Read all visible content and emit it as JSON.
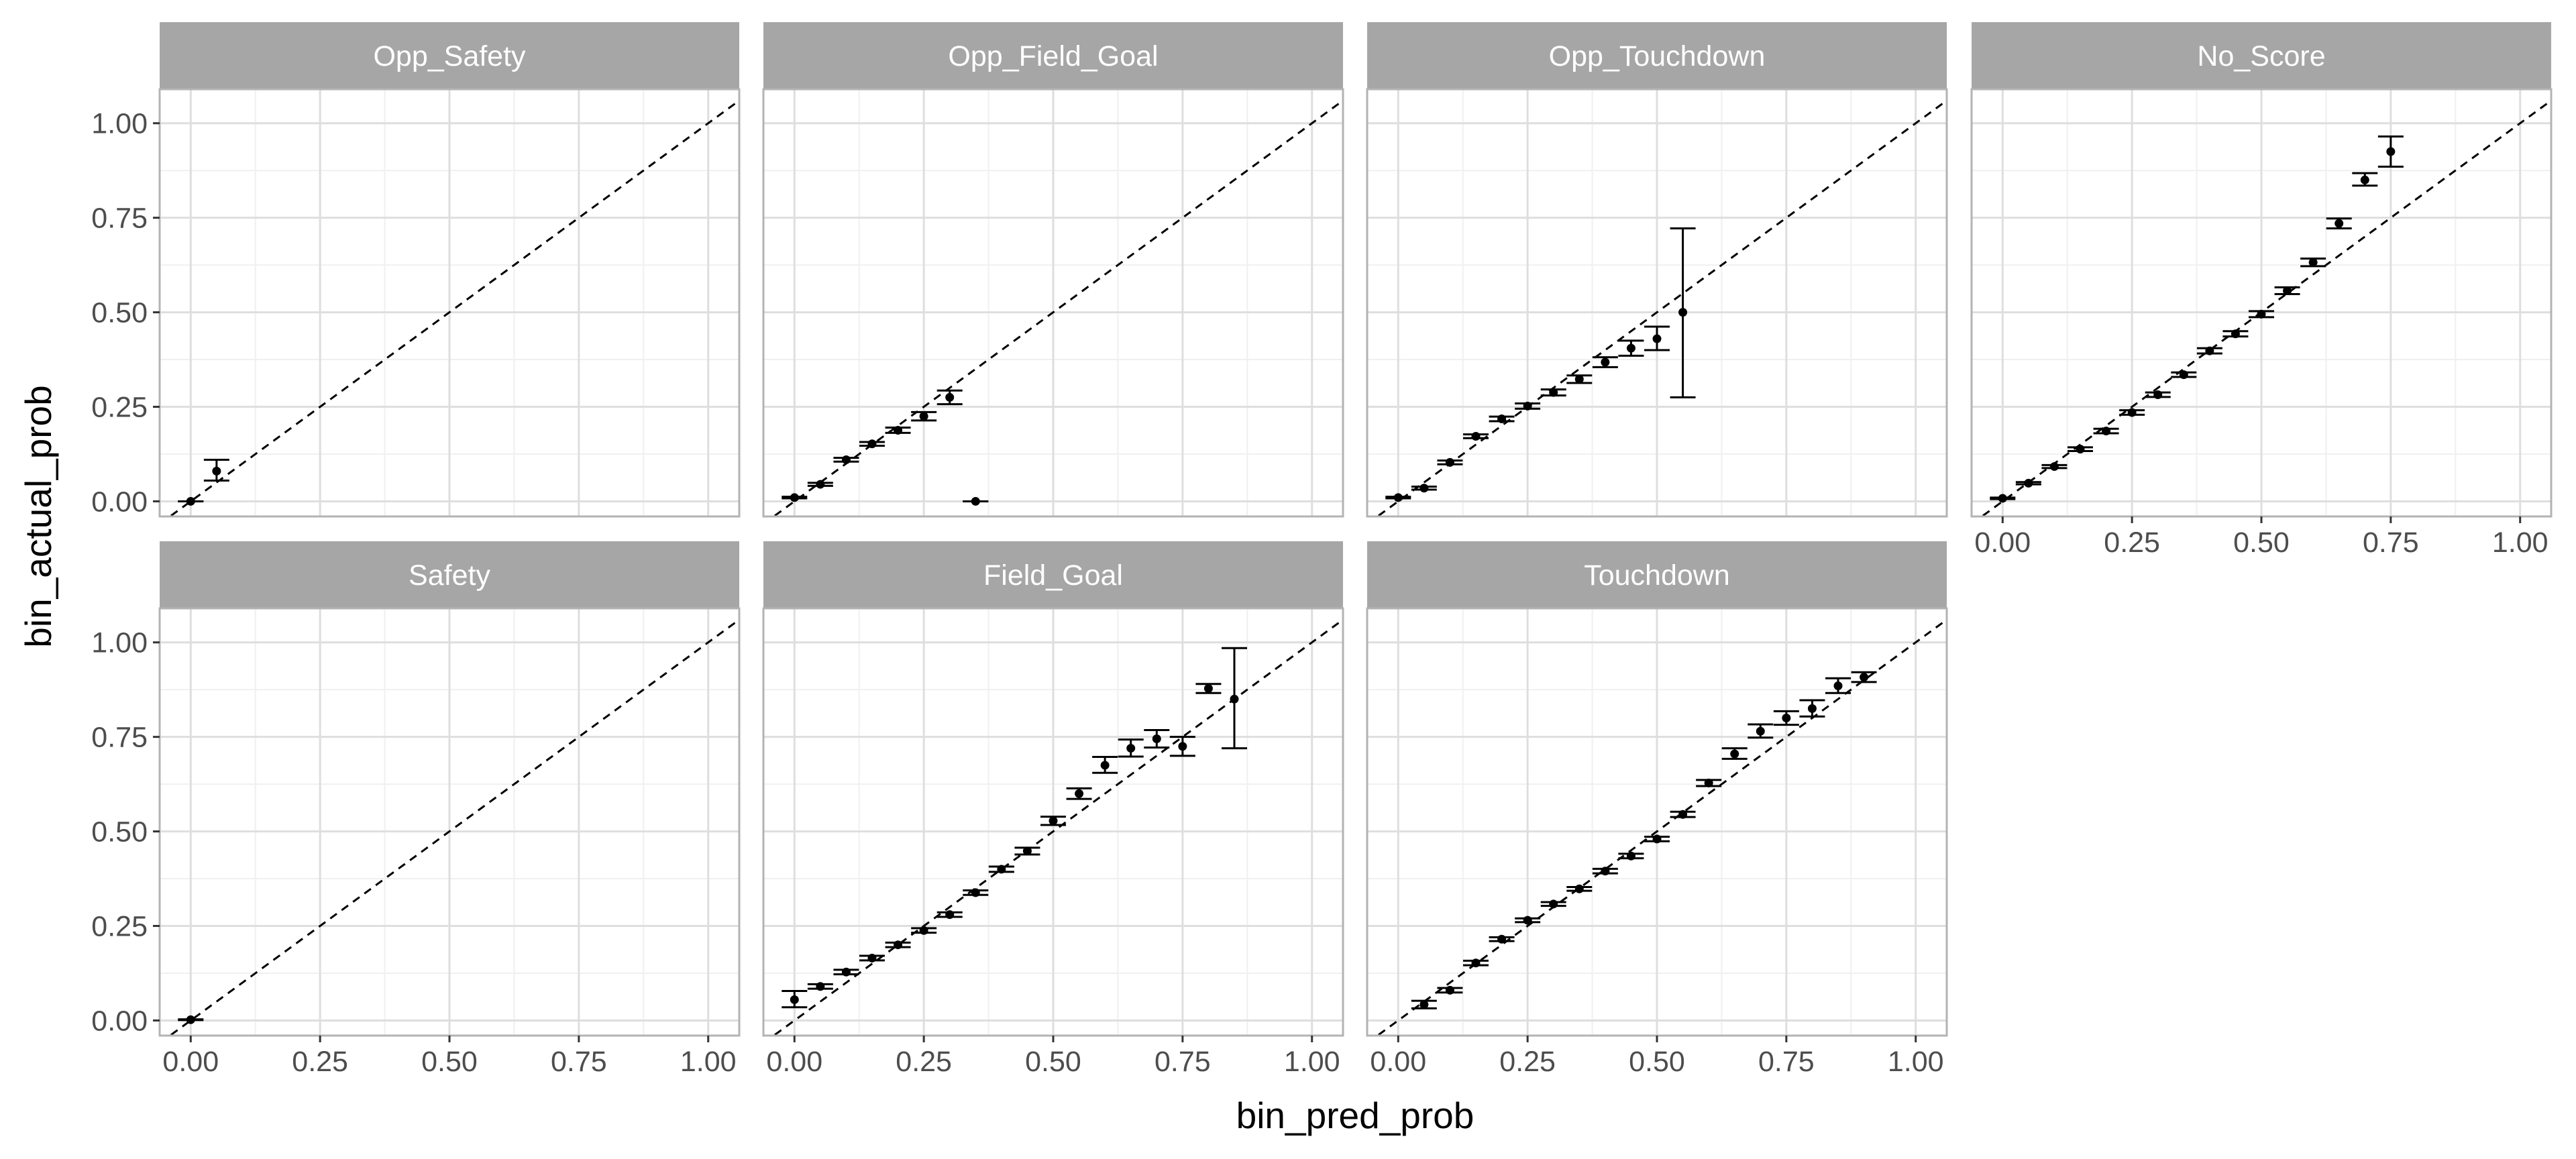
{
  "chart_data": {
    "type": "scatter",
    "xlabel": "bin_pred_prob",
    "ylabel": "bin_actual_prob",
    "xlim": [
      -0.06,
      1.06
    ],
    "ylim": [
      -0.04,
      1.09
    ],
    "x_ticks": [
      0.0,
      0.25,
      0.5,
      0.75,
      1.0
    ],
    "x_tick_labels": [
      "0.00",
      "0.25",
      "0.50",
      "0.75",
      "1.00"
    ],
    "y_ticks": [
      0.0,
      0.25,
      0.5,
      0.75,
      1.0
    ],
    "y_tick_labels": [
      "0.00",
      "0.25",
      "0.50",
      "0.75",
      "1.00"
    ],
    "grid": true,
    "reference_line": "y = x (dashed)",
    "panels": [
      {
        "label": "Opp_Safety",
        "points": [
          {
            "x": 0.0,
            "y": 0.0,
            "lo": 0.0,
            "hi": 0.0
          },
          {
            "x": 0.05,
            "y": 0.08,
            "lo": 0.055,
            "hi": 0.11
          }
        ]
      },
      {
        "label": "Opp_Field_Goal",
        "points": [
          {
            "x": 0.0,
            "y": 0.01,
            "lo": 0.008,
            "hi": 0.012
          },
          {
            "x": 0.05,
            "y": 0.045,
            "lo": 0.041,
            "hi": 0.049
          },
          {
            "x": 0.1,
            "y": 0.11,
            "lo": 0.105,
            "hi": 0.115
          },
          {
            "x": 0.15,
            "y": 0.152,
            "lo": 0.147,
            "hi": 0.157
          },
          {
            "x": 0.2,
            "y": 0.188,
            "lo": 0.181,
            "hi": 0.195
          },
          {
            "x": 0.25,
            "y": 0.225,
            "lo": 0.214,
            "hi": 0.236
          },
          {
            "x": 0.3,
            "y": 0.275,
            "lo": 0.257,
            "hi": 0.293
          },
          {
            "x": 0.35,
            "y": 0.0,
            "lo": 0.0,
            "hi": 0.0
          }
        ]
      },
      {
        "label": "Opp_Touchdown",
        "points": [
          {
            "x": 0.0,
            "y": 0.01,
            "lo": 0.008,
            "hi": 0.012
          },
          {
            "x": 0.05,
            "y": 0.035,
            "lo": 0.031,
            "hi": 0.039
          },
          {
            "x": 0.1,
            "y": 0.103,
            "lo": 0.098,
            "hi": 0.108
          },
          {
            "x": 0.15,
            "y": 0.172,
            "lo": 0.167,
            "hi": 0.177
          },
          {
            "x": 0.2,
            "y": 0.218,
            "lo": 0.212,
            "hi": 0.224
          },
          {
            "x": 0.25,
            "y": 0.252,
            "lo": 0.245,
            "hi": 0.259
          },
          {
            "x": 0.3,
            "y": 0.288,
            "lo": 0.28,
            "hi": 0.296
          },
          {
            "x": 0.35,
            "y": 0.323,
            "lo": 0.313,
            "hi": 0.333
          },
          {
            "x": 0.4,
            "y": 0.368,
            "lo": 0.355,
            "hi": 0.381
          },
          {
            "x": 0.45,
            "y": 0.405,
            "lo": 0.385,
            "hi": 0.425
          },
          {
            "x": 0.5,
            "y": 0.43,
            "lo": 0.4,
            "hi": 0.462
          },
          {
            "x": 0.55,
            "y": 0.5,
            "lo": 0.275,
            "hi": 0.722
          }
        ]
      },
      {
        "label": "No_Score",
        "points": [
          {
            "x": 0.0,
            "y": 0.008,
            "lo": 0.006,
            "hi": 0.01
          },
          {
            "x": 0.05,
            "y": 0.048,
            "lo": 0.045,
            "hi": 0.051
          },
          {
            "x": 0.1,
            "y": 0.092,
            "lo": 0.088,
            "hi": 0.096
          },
          {
            "x": 0.15,
            "y": 0.138,
            "lo": 0.133,
            "hi": 0.143
          },
          {
            "x": 0.2,
            "y": 0.186,
            "lo": 0.18,
            "hi": 0.192
          },
          {
            "x": 0.25,
            "y": 0.235,
            "lo": 0.229,
            "hi": 0.241
          },
          {
            "x": 0.3,
            "y": 0.282,
            "lo": 0.276,
            "hi": 0.288
          },
          {
            "x": 0.35,
            "y": 0.335,
            "lo": 0.329,
            "hi": 0.341
          },
          {
            "x": 0.4,
            "y": 0.398,
            "lo": 0.391,
            "hi": 0.405
          },
          {
            "x": 0.45,
            "y": 0.443,
            "lo": 0.436,
            "hi": 0.45
          },
          {
            "x": 0.5,
            "y": 0.495,
            "lo": 0.487,
            "hi": 0.503
          },
          {
            "x": 0.55,
            "y": 0.557,
            "lo": 0.548,
            "hi": 0.566
          },
          {
            "x": 0.6,
            "y": 0.632,
            "lo": 0.622,
            "hi": 0.642
          },
          {
            "x": 0.65,
            "y": 0.735,
            "lo": 0.722,
            "hi": 0.748
          },
          {
            "x": 0.7,
            "y": 0.85,
            "lo": 0.835,
            "hi": 0.868
          },
          {
            "x": 0.75,
            "y": 0.925,
            "lo": 0.885,
            "hi": 0.965
          }
        ]
      },
      {
        "label": "Safety",
        "points": [
          {
            "x": 0.0,
            "y": 0.002,
            "lo": 0.001,
            "hi": 0.003
          }
        ]
      },
      {
        "label": "Field_Goal",
        "points": [
          {
            "x": 0.0,
            "y": 0.055,
            "lo": 0.035,
            "hi": 0.078
          },
          {
            "x": 0.05,
            "y": 0.09,
            "lo": 0.084,
            "hi": 0.096
          },
          {
            "x": 0.1,
            "y": 0.128,
            "lo": 0.122,
            "hi": 0.134
          },
          {
            "x": 0.15,
            "y": 0.165,
            "lo": 0.159,
            "hi": 0.171
          },
          {
            "x": 0.2,
            "y": 0.2,
            "lo": 0.194,
            "hi": 0.206
          },
          {
            "x": 0.25,
            "y": 0.238,
            "lo": 0.232,
            "hi": 0.244
          },
          {
            "x": 0.3,
            "y": 0.28,
            "lo": 0.274,
            "hi": 0.286
          },
          {
            "x": 0.35,
            "y": 0.338,
            "lo": 0.332,
            "hi": 0.344
          },
          {
            "x": 0.4,
            "y": 0.4,
            "lo": 0.393,
            "hi": 0.407
          },
          {
            "x": 0.45,
            "y": 0.448,
            "lo": 0.439,
            "hi": 0.457
          },
          {
            "x": 0.5,
            "y": 0.528,
            "lo": 0.517,
            "hi": 0.539
          },
          {
            "x": 0.55,
            "y": 0.6,
            "lo": 0.586,
            "hi": 0.614
          },
          {
            "x": 0.6,
            "y": 0.675,
            "lo": 0.655,
            "hi": 0.697
          },
          {
            "x": 0.65,
            "y": 0.72,
            "lo": 0.698,
            "hi": 0.743
          },
          {
            "x": 0.7,
            "y": 0.745,
            "lo": 0.722,
            "hi": 0.768
          },
          {
            "x": 0.75,
            "y": 0.725,
            "lo": 0.7,
            "hi": 0.75
          },
          {
            "x": 0.8,
            "y": 0.878,
            "lo": 0.866,
            "hi": 0.89
          },
          {
            "x": 0.85,
            "y": 0.85,
            "lo": 0.72,
            "hi": 0.985
          }
        ]
      },
      {
        "label": "Touchdown",
        "points": [
          {
            "x": 0.05,
            "y": 0.042,
            "lo": 0.032,
            "hi": 0.052
          },
          {
            "x": 0.1,
            "y": 0.08,
            "lo": 0.074,
            "hi": 0.086
          },
          {
            "x": 0.15,
            "y": 0.152,
            "lo": 0.146,
            "hi": 0.158
          },
          {
            "x": 0.2,
            "y": 0.215,
            "lo": 0.21,
            "hi": 0.22
          },
          {
            "x": 0.25,
            "y": 0.265,
            "lo": 0.26,
            "hi": 0.27
          },
          {
            "x": 0.3,
            "y": 0.308,
            "lo": 0.303,
            "hi": 0.313
          },
          {
            "x": 0.35,
            "y": 0.348,
            "lo": 0.343,
            "hi": 0.353
          },
          {
            "x": 0.4,
            "y": 0.395,
            "lo": 0.389,
            "hi": 0.401
          },
          {
            "x": 0.45,
            "y": 0.435,
            "lo": 0.429,
            "hi": 0.441
          },
          {
            "x": 0.5,
            "y": 0.48,
            "lo": 0.474,
            "hi": 0.486
          },
          {
            "x": 0.55,
            "y": 0.545,
            "lo": 0.538,
            "hi": 0.552
          },
          {
            "x": 0.6,
            "y": 0.628,
            "lo": 0.62,
            "hi": 0.636
          },
          {
            "x": 0.65,
            "y": 0.705,
            "lo": 0.692,
            "hi": 0.72
          },
          {
            "x": 0.7,
            "y": 0.765,
            "lo": 0.748,
            "hi": 0.783
          },
          {
            "x": 0.75,
            "y": 0.8,
            "lo": 0.782,
            "hi": 0.818
          },
          {
            "x": 0.8,
            "y": 0.825,
            "lo": 0.804,
            "hi": 0.847
          },
          {
            "x": 0.85,
            "y": 0.885,
            "lo": 0.866,
            "hi": 0.905
          },
          {
            "x": 0.9,
            "y": 0.908,
            "lo": 0.895,
            "hi": 0.921
          }
        ]
      }
    ]
  }
}
